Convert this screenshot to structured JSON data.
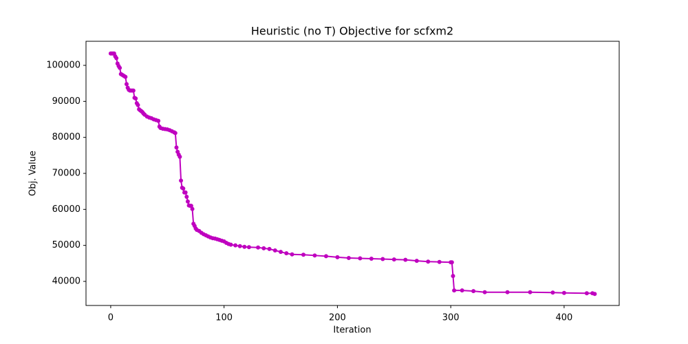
{
  "chart_data": {
    "type": "line",
    "title": "Heuristic (no T) Objective for scfxm2",
    "x_label": "Iteration",
    "y_label": "Obj. Value",
    "x": [
      0,
      1,
      2,
      3,
      4,
      5,
      6,
      7,
      8,
      9,
      10,
      11,
      12,
      13,
      14,
      15,
      16,
      17,
      18,
      19,
      20,
      21,
      22,
      23,
      24,
      25,
      26,
      27,
      28,
      29,
      30,
      32,
      34,
      36,
      38,
      40,
      42,
      43,
      44,
      46,
      48,
      50,
      52,
      54,
      56,
      57,
      58,
      59,
      60,
      61,
      62,
      63,
      64,
      65,
      66,
      67,
      68,
      69,
      70,
      71,
      72,
      73,
      74,
      75,
      76,
      78,
      80,
      82,
      84,
      86,
      88,
      90,
      92,
      94,
      96,
      98,
      100,
      102,
      104,
      106,
      110,
      114,
      118,
      122,
      130,
      135,
      140,
      145,
      150,
      155,
      160,
      170,
      180,
      190,
      200,
      210,
      220,
      230,
      240,
      250,
      260,
      270,
      280,
      290,
      300,
      301,
      302,
      303,
      310,
      320,
      330,
      350,
      370,
      390,
      400,
      420,
      425,
      427
    ],
    "series": [
      {
        "name": "Obj. Value",
        "color": "#bf00bf",
        "values": [
          103300,
          103300,
          103300,
          103300,
          102500,
          102000,
          100500,
          99800,
          99300,
          97600,
          97400,
          97200,
          97000,
          96800,
          94800,
          93800,
          93200,
          93000,
          93000,
          93000,
          93000,
          91000,
          90800,
          89500,
          89000,
          87800,
          87500,
          87300,
          87000,
          86600,
          86300,
          85800,
          85500,
          85300,
          85000,
          84800,
          84600,
          83000,
          82600,
          82400,
          82300,
          82200,
          82000,
          81700,
          81400,
          81200,
          77200,
          76000,
          75200,
          74600,
          68000,
          66000,
          65800,
          64700,
          64700,
          63500,
          62200,
          61100,
          61000,
          61000,
          60100,
          56000,
          55400,
          54700,
          54300,
          54000,
          53500,
          53100,
          52800,
          52500,
          52200,
          52000,
          51900,
          51700,
          51500,
          51300,
          51100,
          50700,
          50400,
          50200,
          50000,
          49800,
          49600,
          49500,
          49400,
          49200,
          49000,
          48600,
          48200,
          47800,
          47500,
          47400,
          47200,
          47000,
          46700,
          46500,
          46400,
          46300,
          46200,
          46100,
          46000,
          45700,
          45500,
          45400,
          45300,
          45300,
          41500,
          37500,
          37500,
          37300,
          37000,
          37000,
          37000,
          36900,
          36800,
          36700,
          36700,
          36500
        ]
      }
    ],
    "xlim": [
      -21.8,
      448.6
    ],
    "ylim": [
      33310,
      106690
    ],
    "xticks": [
      0,
      100,
      200,
      300,
      400
    ],
    "yticks": [
      40000,
      50000,
      60000,
      70000,
      80000,
      90000,
      100000
    ],
    "grid": false
  }
}
